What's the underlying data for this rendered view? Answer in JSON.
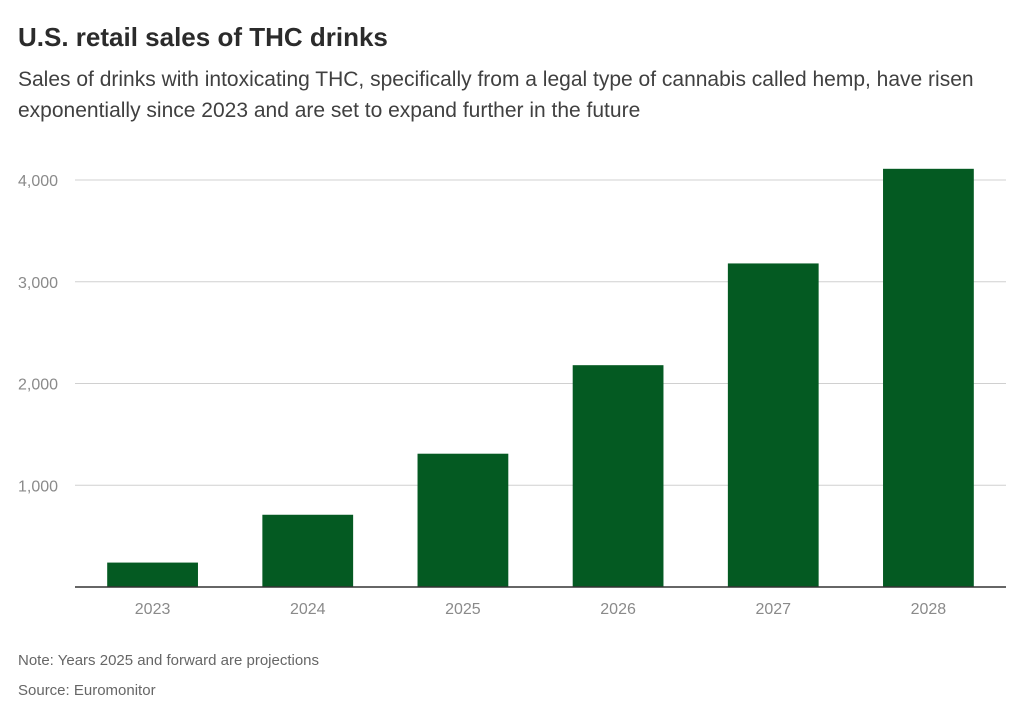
{
  "chart_data": {
    "type": "bar",
    "title": "U.S. retail sales of THC drinks",
    "subtitle": "Sales of drinks with intoxicating THC, specifically from a legal type of cannabis called hemp, have risen exponentially since 2023 and are set to expand further in the future",
    "categories": [
      "2023",
      "2024",
      "2025",
      "2026",
      "2027",
      "2028"
    ],
    "values": [
      240,
      710,
      1310,
      2180,
      3180,
      4110
    ],
    "ylim": [
      0,
      4000
    ],
    "yticks": [
      1000,
      2000,
      3000,
      4000
    ],
    "ytick_labels": [
      "1,000",
      "2,000",
      "3,000",
      "4,000"
    ],
    "grid": true,
    "bar_color": "#045a22",
    "note": "Note: Years 2025 and forward are projections",
    "source": "Source: Euromonitor"
  }
}
